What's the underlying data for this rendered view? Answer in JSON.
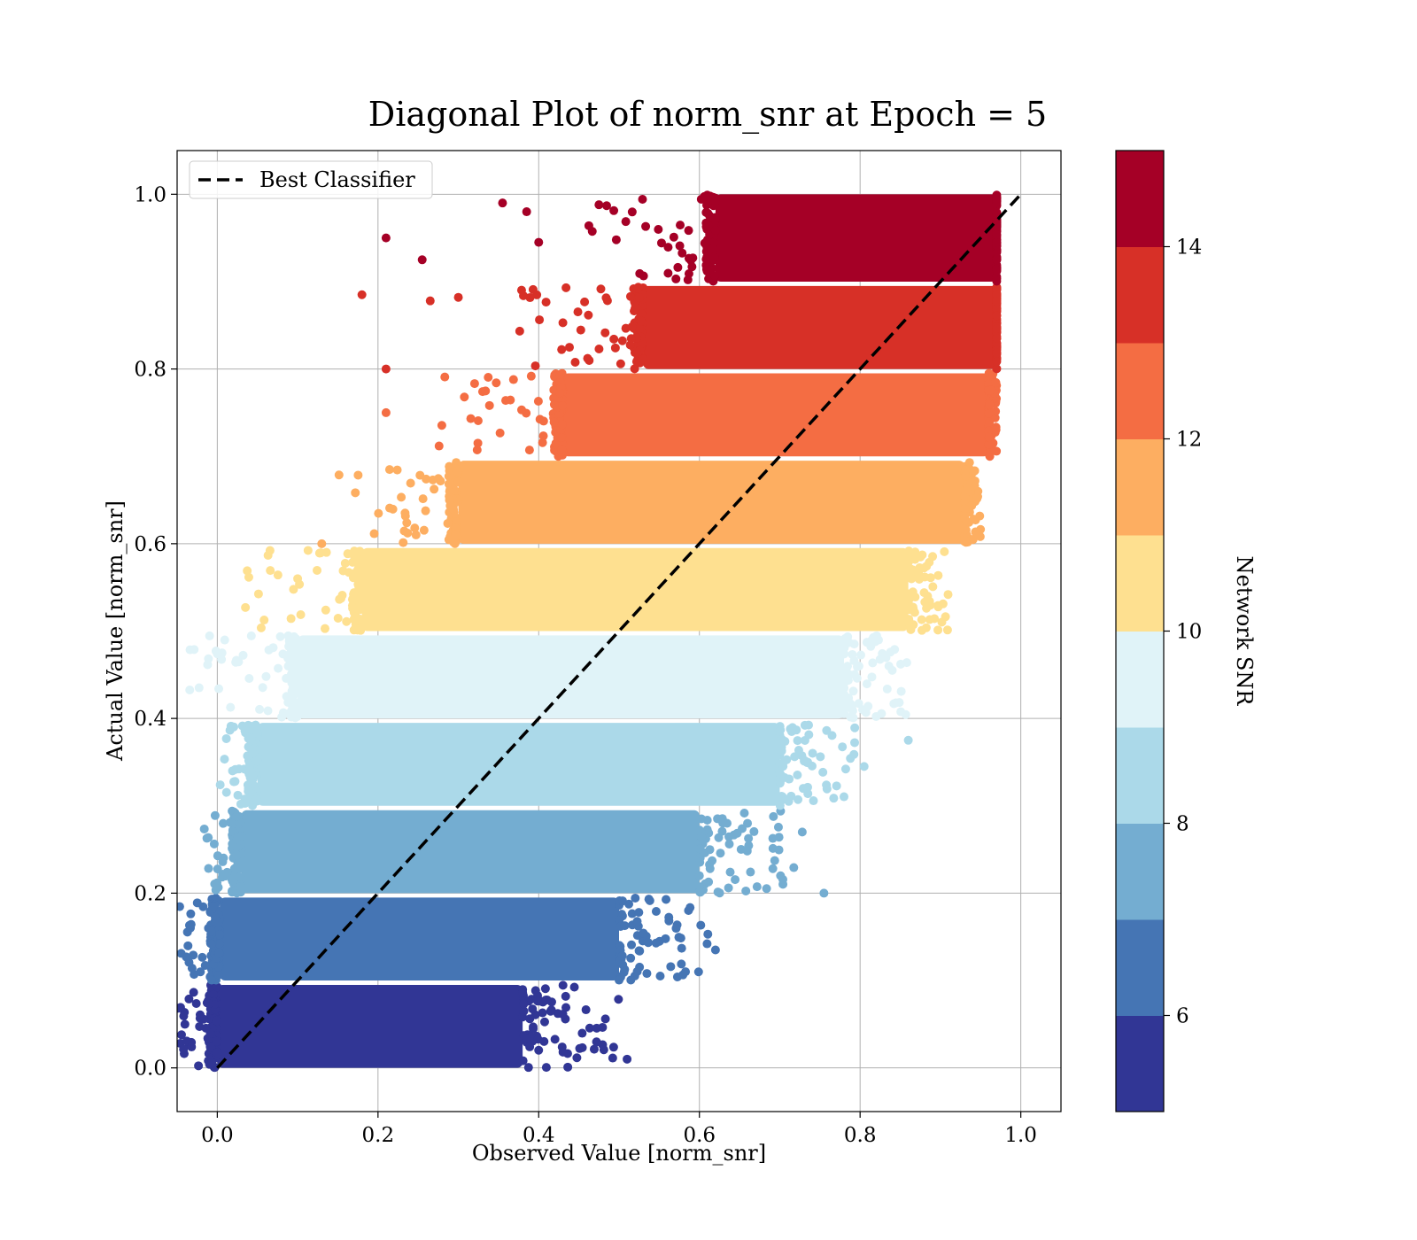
{
  "chart_data": {
    "type": "scatter",
    "title": "Diagonal Plot of norm_snr at Epoch = 5",
    "xlabel": "Observed Value [norm_snr]",
    "ylabel": "Actual Value [norm_snr]",
    "xlim": [
      -0.05,
      1.05
    ],
    "ylim": [
      -0.05,
      1.05
    ],
    "x_ticks": [
      "0.0",
      "0.2",
      "0.4",
      "0.6",
      "0.8",
      "1.0"
    ],
    "y_ticks": [
      "0.0",
      "0.2",
      "0.4",
      "0.6",
      "0.8",
      "1.0"
    ],
    "grid": true,
    "legend": {
      "placement": "top-left",
      "entries": [
        {
          "label": "Best Classifier",
          "style": "dashed",
          "color": "#000000"
        }
      ]
    },
    "reference_line": {
      "name": "Best Classifier",
      "x": [
        0.0,
        1.0
      ],
      "y": [
        0.0,
        1.0
      ]
    },
    "colorbar": {
      "label": "Network SNR",
      "range": [
        5,
        15
      ],
      "ticks": [
        "6",
        "8",
        "10",
        "12",
        "14"
      ],
      "colors": [
        "#313695",
        "#4575b4",
        "#74add1",
        "#abd9e9",
        "#e0f3f8",
        "#fee090",
        "#fdae61",
        "#f46d43",
        "#d73027",
        "#a50026"
      ]
    },
    "bands": [
      {
        "y": [
          0.0,
          0.095
        ],
        "x_left": 0.0,
        "x_right": 0.38,
        "tail_x": 0.5,
        "snr": 5.5
      },
      {
        "y": [
          0.1,
          0.195
        ],
        "x_left": 0.003,
        "x_right": 0.5,
        "tail_x": 0.62,
        "snr": 6.5
      },
      {
        "y": [
          0.2,
          0.295
        ],
        "x_left": 0.03,
        "x_right": 0.6,
        "tail_x": 0.72,
        "snr": 7.5
      },
      {
        "y": [
          0.3,
          0.395
        ],
        "x_left": 0.05,
        "x_right": 0.7,
        "tail_x": 0.8,
        "snr": 8.5
      },
      {
        "y": [
          0.4,
          0.495
        ],
        "x_left": 0.1,
        "x_right": 0.78,
        "tail_x": 0.86,
        "snr": 9.5
      },
      {
        "y": [
          0.5,
          0.595
        ],
        "x_left": 0.18,
        "x_right": 0.86,
        "tail_x": 0.91,
        "snr": 10.5
      },
      {
        "y": [
          0.6,
          0.695
        ],
        "x_left": 0.3,
        "x_right": 0.93,
        "tail_x": 0.95,
        "snr": 11.5
      },
      {
        "y": [
          0.7,
          0.795
        ],
        "x_left": 0.43,
        "x_right": 0.96,
        "tail_x": 0.97,
        "snr": 12.5
      },
      {
        "y": [
          0.8,
          0.895
        ],
        "x_left": 0.53,
        "x_right": 0.97,
        "tail_x": 0.97,
        "snr": 13.5
      },
      {
        "y": [
          0.9,
          1.0
        ],
        "x_left": 0.62,
        "x_right": 0.97,
        "tail_x": 0.97,
        "snr": 14.5
      }
    ],
    "outliers": [
      {
        "x": 0.18,
        "y": 0.885,
        "snr": 13.5
      },
      {
        "x": 0.21,
        "y": 0.95,
        "snr": 14.5
      },
      {
        "x": 0.255,
        "y": 0.925,
        "snr": 14.5
      },
      {
        "x": 0.265,
        "y": 0.878,
        "snr": 13.5
      },
      {
        "x": 0.3,
        "y": 0.882,
        "snr": 13.5
      },
      {
        "x": 0.21,
        "y": 0.8,
        "snr": 13.5
      },
      {
        "x": 0.21,
        "y": 0.75,
        "snr": 12.5
      },
      {
        "x": 0.13,
        "y": 0.6,
        "snr": 11.5
      },
      {
        "x": 0.1,
        "y": 0.56,
        "snr": 10.5
      },
      {
        "x": 0.355,
        "y": 0.99,
        "snr": 14.5
      },
      {
        "x": 0.385,
        "y": 0.98,
        "snr": 14.5
      },
      {
        "x": 0.475,
        "y": 0.988,
        "snr": 14.5
      },
      {
        "x": 0.4,
        "y": 0.945,
        "snr": 14.5
      },
      {
        "x": 0.86,
        "y": 0.375,
        "snr": 8.5
      },
      {
        "x": 0.805,
        "y": 0.345,
        "snr": 8.5
      },
      {
        "x": 0.755,
        "y": 0.2,
        "snr": 7.5
      },
      {
        "x": 0.728,
        "y": 0.27,
        "snr": 7.5
      },
      {
        "x": 0.62,
        "y": 0.135,
        "snr": 6.5
      },
      {
        "x": 0.51,
        "y": 0.01,
        "snr": 5.5
      },
      {
        "x": 0.84,
        "y": 0.455,
        "snr": 9.5
      },
      {
        "x": 0.93,
        "y": 0.64,
        "snr": 11.5
      }
    ]
  }
}
